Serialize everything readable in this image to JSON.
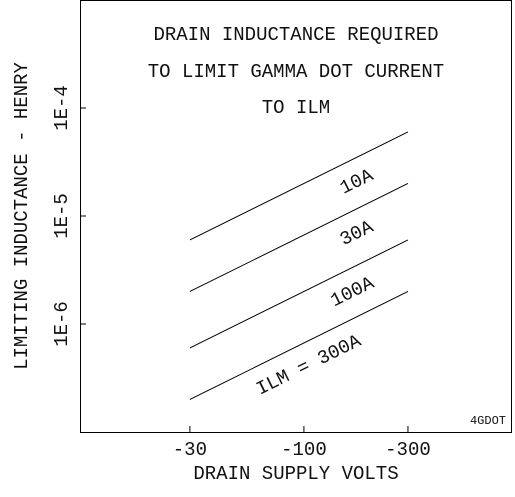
{
  "chart_data": {
    "type": "line",
    "title": [
      "DRAIN INDUCTANCE REQUIRED",
      "TO LIMIT GAMMA DOT CURRENT",
      "TO ILM"
    ],
    "xlabel": "DRAIN SUPPLY VOLTS",
    "ylabel": "LIMITING INDUCTANCE - HENRY",
    "annotation": "4GDOT",
    "xlog": true,
    "ylog": true,
    "x": [
      -30,
      -300
    ],
    "series": [
      {
        "name": "10A",
        "color": "#000000",
        "values": [
          6e-06,
          6e-05
        ]
      },
      {
        "name": "30A",
        "color": "#000000",
        "values": [
          2e-06,
          2e-05
        ]
      },
      {
        "name": "100A",
        "color": "#000000",
        "values": [
          6e-07,
          6e-06
        ]
      },
      {
        "name": "ILM = 300A",
        "color": "#000000",
        "values": [
          2e-07,
          2e-06
        ]
      }
    ],
    "xlim": [
      -9.4,
      -900
    ],
    "xticks": [
      -30,
      -100,
      -300
    ],
    "ylim": [
      1e-07,
      0.001
    ],
    "yticks": [
      {
        "value": 1e-06,
        "label": "1E-6"
      },
      {
        "value": 1e-05,
        "label": "1E-5"
      },
      {
        "value": 0.0001,
        "label": "1E-4"
      }
    ]
  }
}
